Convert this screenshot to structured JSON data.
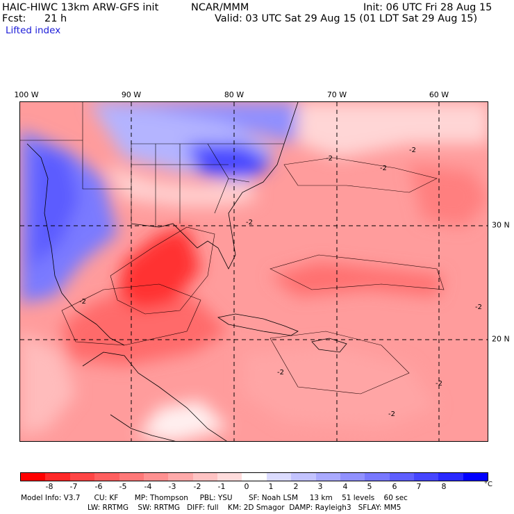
{
  "header": {
    "model": "HAIC-HIWC 13km ARW-GFS init",
    "institution": "NCAR/MMM",
    "init": "Init: 06 UTC Fri 28 Aug 15",
    "fcst_label": "Fcst:",
    "fcst_value": "21 h",
    "valid": "Valid: 03 UTC Sat 29 Aug 15 (01 LDT Sat 29 Aug 15)",
    "field": "Lifted index"
  },
  "map": {
    "lon_labels": [
      "100 W",
      "90 W",
      "80 W",
      "70 W",
      "60 W"
    ],
    "lat_labels": [
      "30 N",
      "20 N"
    ],
    "contour_label": "-2"
  },
  "colorbar": {
    "colors": [
      "#ff0000",
      "#ff2828",
      "#ff4545",
      "#ff5f5f",
      "#ff7878",
      "#ff9191",
      "#ffaaaa",
      "#ffc3c3",
      "#ffdcdc",
      "#ffffff",
      "#dcdcff",
      "#c3c3ff",
      "#aaaaff",
      "#9191ff",
      "#7878ff",
      "#5f5fff",
      "#4545ff",
      "#2828ff",
      "#0000ff"
    ],
    "ticks": [
      "-8",
      "-7",
      "-6",
      "-5",
      "-4",
      "-3",
      "-2",
      "-1",
      "0",
      "1",
      "2",
      "3",
      "4",
      "5",
      "6",
      "7",
      "8"
    ],
    "unit": "°C"
  },
  "footer": {
    "line1": "Model Info: V3.7      CU: KF       MP: Thompson     PBL: YSU       SF: Noah LSM     13 km    51 levels    60 sec",
    "line2": "LW: RRTMG    SW: RRTMG   DIFF: full    KM: 2D Smagor  DAMP: Rayleigh3   SFLAY: MM5"
  }
}
